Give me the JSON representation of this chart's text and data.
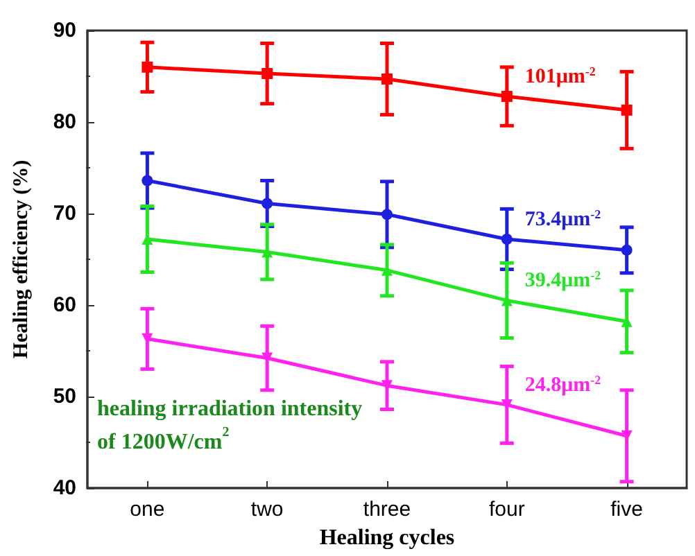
{
  "chart_data": {
    "type": "line",
    "xlabel": "Healing cycles",
    "ylabel": "Healing efficiency (%)",
    "categories": [
      "one",
      "two",
      "three",
      "four",
      "five"
    ],
    "ylim": [
      40,
      90
    ],
    "yticks": [
      40,
      50,
      60,
      70,
      80,
      90
    ],
    "grid": false,
    "legend": false,
    "series": [
      {
        "name": "101μm$^{-2}$",
        "color": "#ff0000",
        "marker": "square",
        "values": [
          86.0,
          85.3,
          84.7,
          82.8,
          81.3
        ],
        "errors": [
          2.7,
          3.3,
          3.9,
          3.2,
          4.2
        ]
      },
      {
        "name": "73.4μm$^{-2}$",
        "color": "#1f1fe0",
        "marker": "circle",
        "values": [
          73.6,
          71.1,
          69.9,
          67.2,
          66.0
        ],
        "errors": [
          3.0,
          2.5,
          3.6,
          3.3,
          2.5
        ]
      },
      {
        "name": "39.4μm$^{-2}$",
        "color": "#22e622",
        "marker": "triangle",
        "values": [
          67.2,
          65.8,
          63.8,
          60.5,
          58.2
        ],
        "errors": [
          3.6,
          3.0,
          2.8,
          4.1,
          3.4
        ]
      },
      {
        "name": "24.8μm$^{-2}$",
        "color": "#ff22ee",
        "marker": "triangle-down",
        "values": [
          56.3,
          54.2,
          51.2,
          49.1,
          45.7
        ],
        "errors": [
          3.3,
          3.5,
          2.6,
          4.2,
          5.0
        ]
      }
    ],
    "annotations": [
      "healing irradiation intensity\nof 1200W/cm$^{2}$"
    ]
  }
}
